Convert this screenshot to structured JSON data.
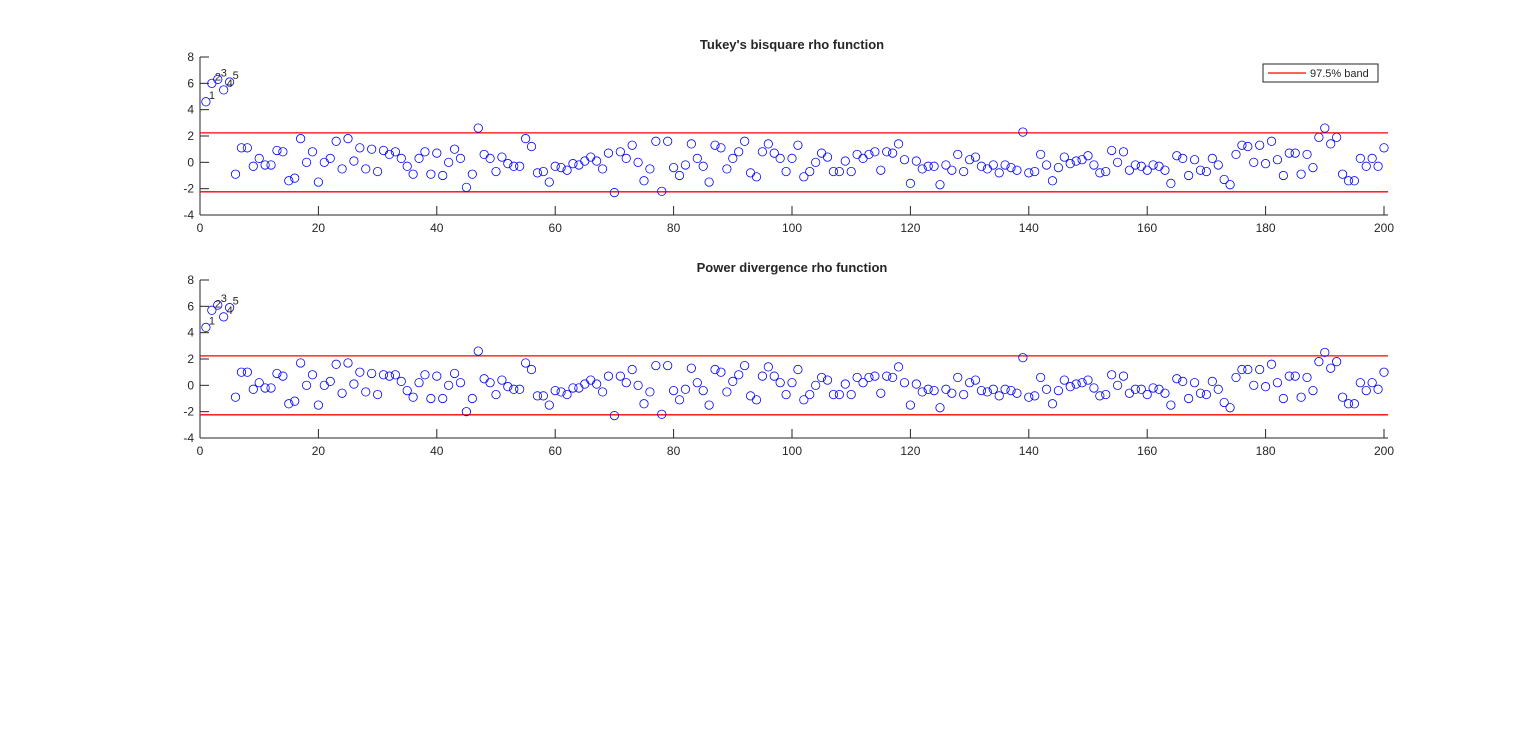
{
  "chart_data": [
    {
      "type": "scatter",
      "title": "Tukey's bisquare rho function",
      "xlabel": "",
      "ylabel": "",
      "xlim": [
        0,
        200
      ],
      "ylim": [
        -4,
        8
      ],
      "xticks": [
        0,
        20,
        40,
        60,
        80,
        100,
        120,
        140,
        160,
        180,
        200
      ],
      "yticks": [
        -4,
        -2,
        0,
        2,
        4,
        6,
        8
      ],
      "grid": false,
      "legend": {
        "entries": [
          "97.5% band"
        ],
        "position": "northeast"
      },
      "band": {
        "upper": 2.24,
        "lower": -2.24,
        "color": "#ff0000",
        "label": "97.5% band"
      },
      "marker_color": "#0000ff",
      "labeled_points": [
        {
          "x": 1,
          "label": "1"
        },
        {
          "x": 2,
          "label": "2"
        },
        {
          "x": 3,
          "label": "3"
        },
        {
          "x": 4,
          "label": "4"
        },
        {
          "x": 5,
          "label": "5"
        }
      ],
      "values": [
        4.6,
        6.0,
        6.3,
        5.5,
        6.1,
        -0.9,
        1.1,
        1.1,
        -0.3,
        0.3,
        -0.2,
        -0.2,
        0.9,
        0.8,
        -1.4,
        -1.2,
        1.8,
        0.0,
        0.8,
        -1.5,
        0.0,
        0.3,
        1.6,
        -0.5,
        1.8,
        0.1,
        1.1,
        -0.5,
        1.0,
        -0.7,
        0.9,
        0.6,
        0.8,
        0.3,
        -0.3,
        -0.9,
        0.3,
        0.8,
        -0.9,
        0.7,
        -1.0,
        0.0,
        1.0,
        0.3,
        -1.9,
        -0.9,
        2.6,
        0.6,
        0.3,
        -0.7,
        0.4,
        -0.1,
        -0.3,
        -0.3,
        1.8,
        1.2,
        -0.8,
        -0.7,
        -1.5,
        -0.3,
        -0.4,
        -0.6,
        -0.1,
        -0.2,
        0.1,
        0.4,
        0.1,
        -0.5,
        0.7,
        -2.3,
        0.8,
        0.3,
        1.3,
        0.0,
        -1.4,
        -0.5,
        1.6,
        -2.2,
        1.6,
        -0.4,
        -1.0,
        -0.2,
        1.4,
        0.3,
        -0.3,
        -1.5,
        1.3,
        1.1,
        -0.5,
        0.3,
        0.8,
        1.6,
        -0.8,
        -1.1,
        0.8,
        1.4,
        0.7,
        0.3,
        -0.7,
        0.3,
        1.3,
        -1.1,
        -0.7,
        0.0,
        0.7,
        0.4,
        -0.7,
        -0.7,
        0.1,
        -0.7,
        0.6,
        0.3,
        0.6,
        0.8,
        -0.6,
        0.8,
        0.7,
        1.4,
        0.2,
        -1.6,
        0.1,
        -0.5,
        -0.3,
        -0.3,
        -1.7,
        -0.2,
        -0.6,
        0.6,
        -0.7,
        0.2,
        0.4,
        -0.3,
        -0.5,
        -0.2,
        -0.8,
        -0.2,
        -0.4,
        -0.6,
        2.3,
        -0.8,
        -0.7,
        0.6,
        -0.2,
        -1.4,
        -0.4,
        0.4,
        -0.1,
        0.1,
        0.2,
        0.5,
        -0.2,
        -0.8,
        -0.7,
        0.9,
        0.0,
        0.8,
        -0.6,
        -0.2,
        -0.3,
        -0.6,
        -0.2,
        -0.3,
        -0.6,
        -1.6,
        0.5,
        0.3,
        -1.0,
        0.2,
        -0.6,
        -0.7,
        0.3,
        -0.2,
        -1.3,
        -1.7,
        0.6,
        1.3,
        1.2,
        0.0,
        1.3,
        -0.1,
        1.6,
        0.2,
        -1.0,
        0.7,
        0.7,
        -0.9,
        0.6,
        -0.4,
        1.9,
        2.6,
        1.4,
        1.9,
        -0.9,
        -1.4,
        -1.4,
        0.3,
        -0.3,
        0.3,
        -0.3,
        1.1
      ]
    },
    {
      "type": "scatter",
      "title": "Power divergence rho function",
      "xlabel": "",
      "ylabel": "",
      "xlim": [
        0,
        200
      ],
      "ylim": [
        -4,
        8
      ],
      "xticks": [
        0,
        20,
        40,
        60,
        80,
        100,
        120,
        140,
        160,
        180,
        200
      ],
      "yticks": [
        -4,
        -2,
        0,
        2,
        4,
        6,
        8
      ],
      "grid": false,
      "band": {
        "upper": 2.24,
        "lower": -2.24,
        "color": "#ff0000"
      },
      "marker_color": "#0000ff",
      "labeled_points": [
        {
          "x": 1,
          "label": "1"
        },
        {
          "x": 2,
          "label": "2"
        },
        {
          "x": 3,
          "label": "3"
        },
        {
          "x": 4,
          "label": "4"
        },
        {
          "x": 5,
          "label": "5"
        }
      ],
      "values": [
        4.4,
        5.7,
        6.1,
        5.2,
        5.9,
        -0.9,
        1.0,
        1.0,
        -0.3,
        0.2,
        -0.2,
        -0.2,
        0.9,
        0.7,
        -1.4,
        -1.2,
        1.7,
        0.0,
        0.8,
        -1.5,
        0.0,
        0.3,
        1.6,
        -0.6,
        1.7,
        0.1,
        1.0,
        -0.5,
        0.9,
        -0.7,
        0.8,
        0.7,
        0.8,
        0.3,
        -0.4,
        -0.9,
        0.2,
        0.8,
        -1.0,
        0.7,
        -1.0,
        0.0,
        0.9,
        0.2,
        -2.0,
        -1.0,
        2.6,
        0.5,
        0.2,
        -0.7,
        0.4,
        -0.1,
        -0.3,
        -0.3,
        1.7,
        1.2,
        -0.8,
        -0.8,
        -1.5,
        -0.4,
        -0.5,
        -0.7,
        -0.2,
        -0.2,
        0.1,
        0.4,
        0.1,
        -0.5,
        0.7,
        -2.3,
        0.7,
        0.2,
        1.2,
        0.0,
        -1.4,
        -0.5,
        1.5,
        -2.2,
        1.5,
        -0.4,
        -1.1,
        -0.3,
        1.3,
        0.2,
        -0.4,
        -1.5,
        1.2,
        1.0,
        -0.5,
        0.3,
        0.8,
        1.5,
        -0.8,
        -1.1,
        0.7,
        1.4,
        0.7,
        0.2,
        -0.7,
        0.2,
        1.2,
        -1.1,
        -0.7,
        0.0,
        0.6,
        0.4,
        -0.7,
        -0.7,
        0.1,
        -0.7,
        0.6,
        0.2,
        0.6,
        0.7,
        -0.6,
        0.7,
        0.6,
        1.4,
        0.2,
        -1.5,
        0.1,
        -0.5,
        -0.3,
        -0.4,
        -1.7,
        -0.3,
        -0.6,
        0.6,
        -0.7,
        0.2,
        0.4,
        -0.4,
        -0.5,
        -0.3,
        -0.8,
        -0.3,
        -0.4,
        -0.6,
        2.1,
        -0.9,
        -0.8,
        0.6,
        -0.3,
        -1.4,
        -0.4,
        0.4,
        -0.1,
        0.1,
        0.2,
        0.4,
        -0.2,
        -0.8,
        -0.7,
        0.8,
        0.0,
        0.7,
        -0.6,
        -0.3,
        -0.3,
        -0.7,
        -0.2,
        -0.3,
        -0.6,
        -1.5,
        0.5,
        0.3,
        -1.0,
        0.2,
        -0.6,
        -0.7,
        0.3,
        -0.3,
        -1.3,
        -1.7,
        0.6,
        1.2,
        1.2,
        0.0,
        1.2,
        -0.1,
        1.6,
        0.2,
        -1.0,
        0.7,
        0.7,
        -0.9,
        0.6,
        -0.4,
        1.8,
        2.5,
        1.3,
        1.8,
        -0.9,
        -1.4,
        -1.4,
        0.2,
        -0.4,
        0.2,
        -0.3,
        1.0
      ]
    }
  ]
}
